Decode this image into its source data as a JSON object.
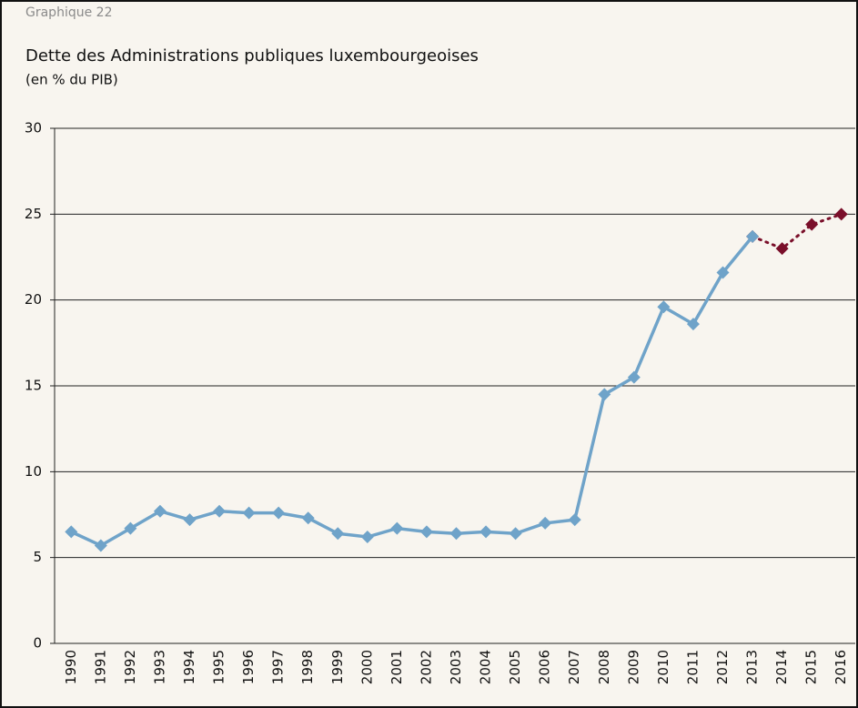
{
  "chart_data": {
    "type": "line",
    "label": "Graphique 22",
    "title": "Dette des Administrations publiques luxembourgeoises",
    "subtitle": "(en % du PIB)",
    "categories": [
      "1990",
      "1991",
      "1992",
      "1993",
      "1994",
      "1995",
      "1996",
      "1997",
      "1998",
      "1999",
      "2000",
      "2001",
      "2002",
      "2003",
      "2004",
      "2005",
      "2006",
      "2007",
      "2008",
      "2009",
      "2010",
      "2011",
      "2012",
      "2013",
      "2014",
      "2015",
      "2016"
    ],
    "series": [
      {
        "color": "#6fa3c9",
        "dash": false,
        "values": [
          6.5,
          5.7,
          6.7,
          7.7,
          7.2,
          7.7,
          7.6,
          7.6,
          7.3,
          6.4,
          6.2,
          6.7,
          6.5,
          6.4,
          6.5,
          6.4,
          7.0,
          7.2,
          14.5,
          15.5,
          19.6,
          18.6,
          21.6,
          23.7,
          null,
          null,
          null
        ]
      },
      {
        "color": "#7a0f2a",
        "dash": true,
        "values": [
          null,
          null,
          null,
          null,
          null,
          null,
          null,
          null,
          null,
          null,
          null,
          null,
          null,
          null,
          null,
          null,
          null,
          null,
          null,
          null,
          null,
          null,
          null,
          23.7,
          23.0,
          24.4,
          25.0
        ]
      }
    ],
    "ylim": [
      0,
      30
    ],
    "yticks": [
      0,
      5,
      10,
      15,
      20,
      25,
      30
    ],
    "grid": true
  }
}
